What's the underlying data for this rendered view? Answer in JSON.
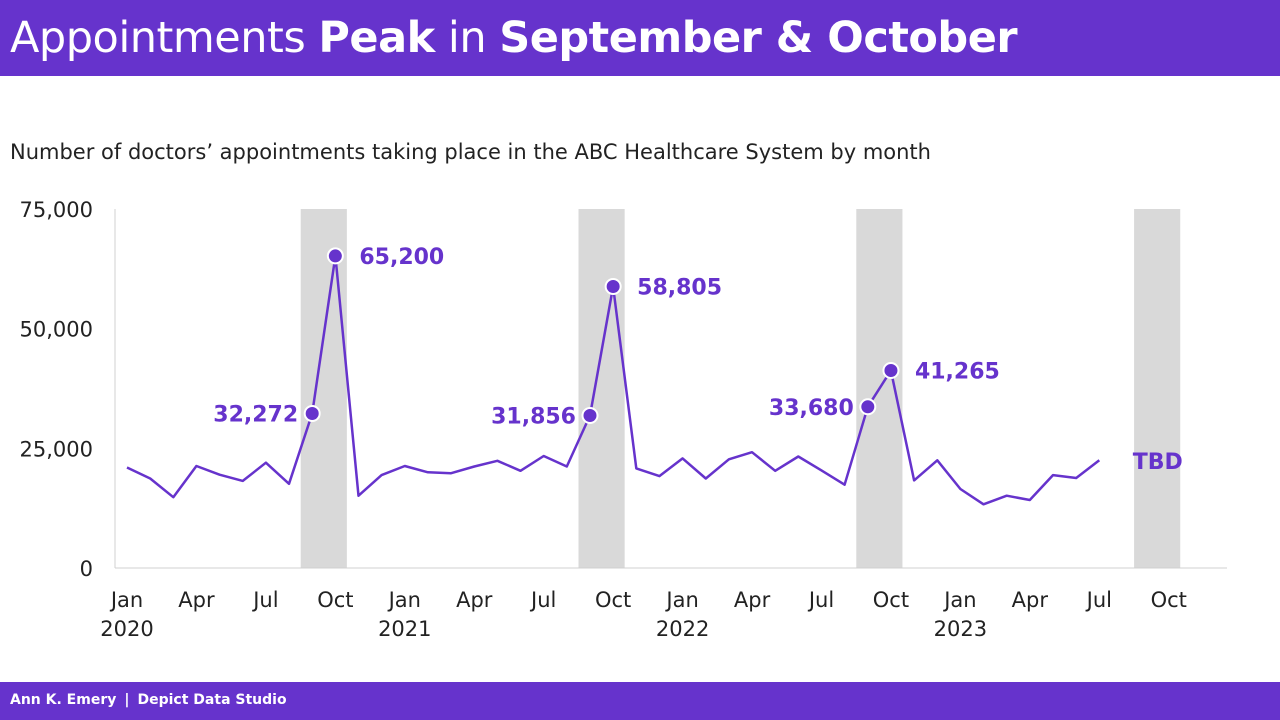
{
  "title": {
    "part1": "Appointments ",
    "part2": "Peak",
    "part3": " in ",
    "part4": "September & October"
  },
  "subtitle": "Number of doctors’ appointments taking place in the ABC Healthcare System by month",
  "footer": {
    "author": "Ann K. Emery",
    "separator": "|",
    "studio": "Depict Data Studio"
  },
  "colors": {
    "accent": "#6633cc",
    "line": "#6633cc",
    "band": "#d9d9d9",
    "axis": "#222222"
  },
  "chart_data": {
    "type": "line",
    "ylim": [
      0,
      75000
    ],
    "yticks": [
      0,
      25000,
      50000,
      75000
    ],
    "ytick_labels": [
      "0",
      "25,000",
      "50,000",
      "75,000"
    ],
    "x_month_labels": [
      "Jan",
      "Apr",
      "Jul",
      "Oct"
    ],
    "years": [
      "2020",
      "2021",
      "2022",
      "2023"
    ],
    "grid": false,
    "legend": "none",
    "series": [
      {
        "values": [
          {
            "x": "2020-01",
            "y": 21000
          },
          {
            "x": "2020-02",
            "y": 18700
          },
          {
            "x": "2020-03",
            "y": 14800
          },
          {
            "x": "2020-04",
            "y": 21300
          },
          {
            "x": "2020-05",
            "y": 19500
          },
          {
            "x": "2020-06",
            "y": 18200
          },
          {
            "x": "2020-07",
            "y": 22000
          },
          {
            "x": "2020-08",
            "y": 17600
          },
          {
            "x": "2020-09",
            "y": 32272
          },
          {
            "x": "2020-10",
            "y": 65200
          },
          {
            "x": "2020-11",
            "y": 15100
          },
          {
            "x": "2020-12",
            "y": 19400
          },
          {
            "x": "2021-01",
            "y": 21300
          },
          {
            "x": "2021-02",
            "y": 20000
          },
          {
            "x": "2021-03",
            "y": 19800
          },
          {
            "x": "2021-04",
            "y": 21200
          },
          {
            "x": "2021-05",
            "y": 22400
          },
          {
            "x": "2021-06",
            "y": 20300
          },
          {
            "x": "2021-07",
            "y": 23400
          },
          {
            "x": "2021-08",
            "y": 21200
          },
          {
            "x": "2021-09",
            "y": 31856
          },
          {
            "x": "2021-10",
            "y": 58805
          },
          {
            "x": "2021-11",
            "y": 20800
          },
          {
            "x": "2021-12",
            "y": 19200
          },
          {
            "x": "2022-01",
            "y": 22900
          },
          {
            "x": "2022-02",
            "y": 18700
          },
          {
            "x": "2022-03",
            "y": 22700
          },
          {
            "x": "2022-04",
            "y": 24200
          },
          {
            "x": "2022-05",
            "y": 20300
          },
          {
            "x": "2022-06",
            "y": 23300
          },
          {
            "x": "2022-07",
            "y": 20400
          },
          {
            "x": "2022-08",
            "y": 17400
          },
          {
            "x": "2022-09",
            "y": 33680
          },
          {
            "x": "2022-10",
            "y": 41265
          },
          {
            "x": "2022-11",
            "y": 18300
          },
          {
            "x": "2022-12",
            "y": 22500
          },
          {
            "x": "2023-01",
            "y": 16500
          },
          {
            "x": "2023-02",
            "y": 13300
          },
          {
            "x": "2023-03",
            "y": 15100
          },
          {
            "x": "2023-04",
            "y": 14200
          },
          {
            "x": "2023-05",
            "y": 19400
          },
          {
            "x": "2023-06",
            "y": 18800
          },
          {
            "x": "2023-07",
            "y": 22500
          }
        ]
      }
    ],
    "highlight_periods": [
      {
        "start": "2020-09",
        "end": "2020-10"
      },
      {
        "start": "2021-09",
        "end": "2021-10"
      },
      {
        "start": "2022-09",
        "end": "2022-10"
      },
      {
        "start": "2023-09",
        "end": "2023-10"
      }
    ],
    "annotations": [
      {
        "x": "2020-09",
        "y": 32272,
        "label": "32,272",
        "side": "left"
      },
      {
        "x": "2020-10",
        "y": 65200,
        "label": "65,200",
        "side": "right"
      },
      {
        "x": "2021-09",
        "y": 31856,
        "label": "31,856",
        "side": "left"
      },
      {
        "x": "2021-10",
        "y": 58805,
        "label": "58,805",
        "side": "right"
      },
      {
        "x": "2022-09",
        "y": 33680,
        "label": "33,680",
        "side": "left"
      },
      {
        "x": "2022-10",
        "y": 41265,
        "label": "41,265",
        "side": "right"
      }
    ],
    "pending_label": {
      "x": "2023-10",
      "text": "TBD"
    }
  }
}
